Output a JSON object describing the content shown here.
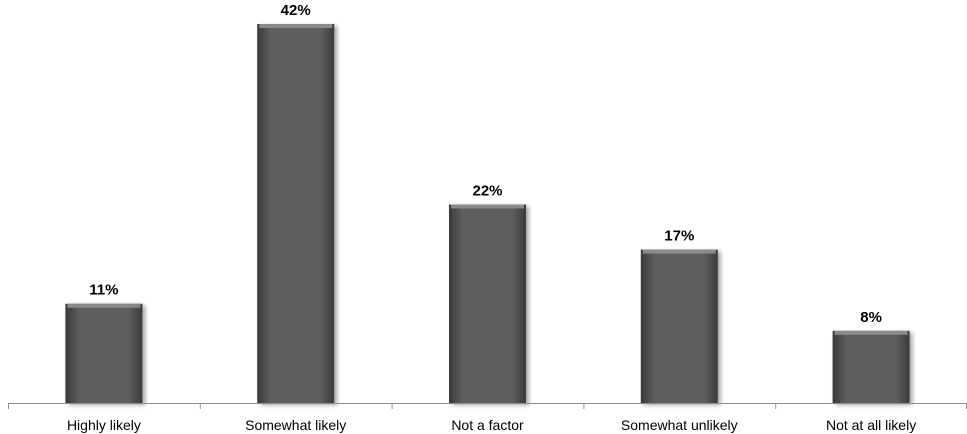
{
  "chart_data": {
    "type": "bar",
    "title": "",
    "xlabel": "",
    "ylabel": "",
    "categories": [
      "Highly likely",
      "Somewhat likely",
      "Not a factor",
      "Somewhat unlikely",
      "Not at all likely"
    ],
    "values": [
      11,
      42,
      22,
      17,
      8
    ],
    "value_labels": [
      "11%",
      "42%",
      "22%",
      "17%",
      "8%"
    ],
    "ylim": [
      0,
      42
    ],
    "grid": false,
    "legend": "none",
    "colors": {
      "bar_fill": "#5f5f5f",
      "bar_highlight": "#8a8a8a",
      "bar_edge": "#3a3a3a",
      "axis": "#8c8c8c"
    }
  }
}
